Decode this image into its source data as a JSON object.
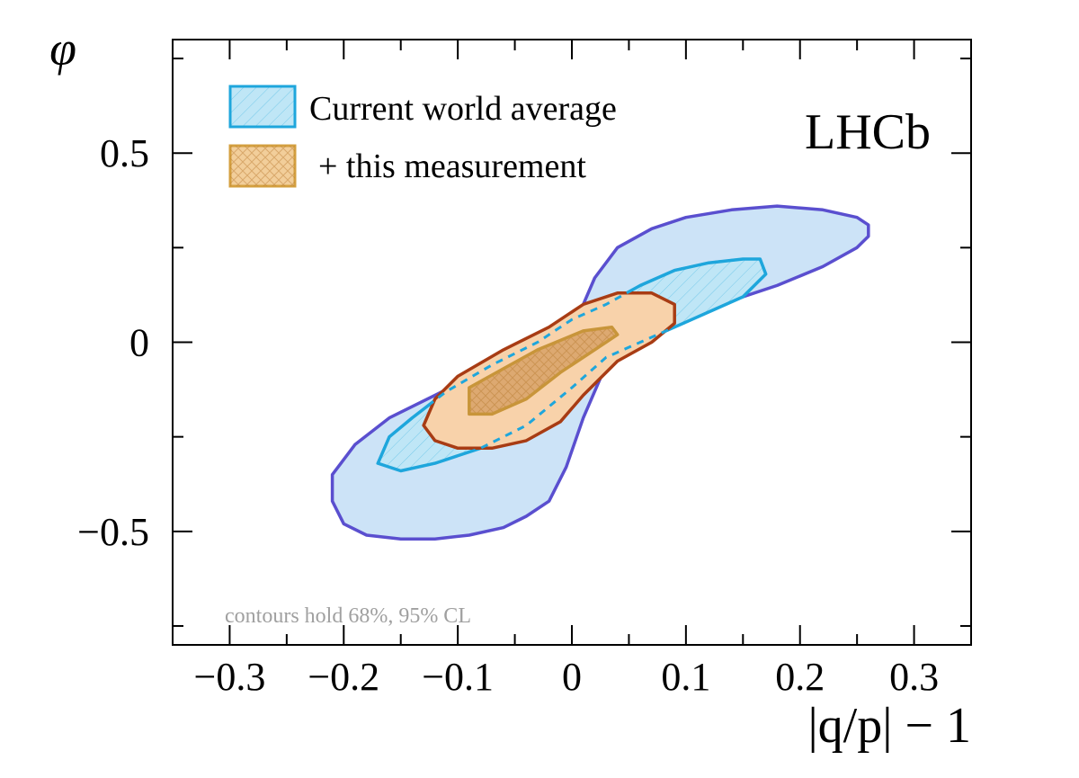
{
  "chart_data": {
    "type": "contour",
    "xlabel": "|q/p| − 1",
    "ylabel": "φ",
    "xlim": [
      -0.35,
      0.35
    ],
    "ylim": [
      -0.8,
      0.8
    ],
    "x_ticks": [
      -0.3,
      -0.2,
      -0.1,
      0,
      0.1,
      0.2,
      0.3
    ],
    "x_tick_labels": [
      "−0.3",
      "−0.2",
      "−0.1",
      "0",
      "0.1",
      "0.2",
      "0.3"
    ],
    "y_ticks": [
      -0.5,
      0,
      0.5
    ],
    "y_tick_labels": [
      "−0.5",
      "0",
      "0.5"
    ],
    "experiment_label": "LHCb",
    "annotation": "contours hold 68%, 95% CL",
    "legend": [
      {
        "label": "Current world average",
        "color": "#1ea6dc",
        "fill": "#bfe6f6"
      },
      {
        "label": "+ this measurement",
        "color": "#d4a040",
        "fill": "#f2ce9a"
      }
    ],
    "series": [
      {
        "name": "Current world average",
        "level": "95% CL",
        "stroke": "#5a4fcf",
        "fill": "#cce3f7",
        "points": [
          [
            -0.21,
            -0.42
          ],
          [
            -0.2,
            -0.48
          ],
          [
            -0.18,
            -0.51
          ],
          [
            -0.15,
            -0.52
          ],
          [
            -0.12,
            -0.52
          ],
          [
            -0.09,
            -0.51
          ],
          [
            -0.06,
            -0.49
          ],
          [
            -0.04,
            -0.46
          ],
          [
            -0.02,
            -0.42
          ],
          [
            -0.005,
            -0.33
          ],
          [
            0.01,
            -0.2
          ],
          [
            0.03,
            -0.06
          ],
          [
            0.06,
            0.01
          ],
          [
            0.1,
            0.06
          ],
          [
            0.14,
            0.11
          ],
          [
            0.18,
            0.15
          ],
          [
            0.22,
            0.2
          ],
          [
            0.25,
            0.25
          ],
          [
            0.26,
            0.28
          ],
          [
            0.26,
            0.31
          ],
          [
            0.25,
            0.33
          ],
          [
            0.22,
            0.35
          ],
          [
            0.18,
            0.36
          ],
          [
            0.14,
            0.35
          ],
          [
            0.1,
            0.33
          ],
          [
            0.07,
            0.3
          ],
          [
            0.04,
            0.25
          ],
          [
            0.02,
            0.17
          ],
          [
            0.01,
            0.1
          ],
          [
            -0.01,
            0.04
          ],
          [
            -0.04,
            -0.02
          ],
          [
            -0.08,
            -0.08
          ],
          [
            -0.12,
            -0.14
          ],
          [
            -0.16,
            -0.2
          ],
          [
            -0.19,
            -0.27
          ],
          [
            -0.21,
            -0.35
          ]
        ]
      },
      {
        "name": "Current world average",
        "level": "68% CL",
        "stroke": "#1ea6dc",
        "fill": "#bfe6f6",
        "points": [
          [
            -0.17,
            -0.32
          ],
          [
            -0.15,
            -0.34
          ],
          [
            -0.12,
            -0.32
          ],
          [
            -0.08,
            -0.28
          ],
          [
            -0.04,
            -0.22
          ],
          [
            0.0,
            -0.12
          ],
          [
            0.03,
            -0.04
          ],
          [
            0.06,
            0.0
          ],
          [
            0.09,
            0.04
          ],
          [
            0.12,
            0.08
          ],
          [
            0.15,
            0.12
          ],
          [
            0.17,
            0.18
          ],
          [
            0.165,
            0.22
          ],
          [
            0.15,
            0.22
          ],
          [
            0.12,
            0.21
          ],
          [
            0.09,
            0.19
          ],
          [
            0.06,
            0.15
          ],
          [
            0.03,
            0.1
          ],
          [
            0.0,
            0.06
          ],
          [
            -0.03,
            0.0
          ],
          [
            -0.07,
            -0.06
          ],
          [
            -0.11,
            -0.13
          ],
          [
            -0.14,
            -0.2
          ],
          [
            -0.16,
            -0.25
          ]
        ]
      },
      {
        "name": "+ this measurement",
        "level": "95% CL",
        "stroke": "#a83c14",
        "fill": "#f8d2aa",
        "points": [
          [
            -0.13,
            -0.22
          ],
          [
            -0.12,
            -0.26
          ],
          [
            -0.1,
            -0.28
          ],
          [
            -0.07,
            -0.28
          ],
          [
            -0.04,
            -0.26
          ],
          [
            -0.01,
            -0.21
          ],
          [
            0.01,
            -0.14
          ],
          [
            0.04,
            -0.05
          ],
          [
            0.07,
            0.0
          ],
          [
            0.09,
            0.05
          ],
          [
            0.09,
            0.1
          ],
          [
            0.07,
            0.13
          ],
          [
            0.04,
            0.13
          ],
          [
            0.01,
            0.1
          ],
          [
            -0.02,
            0.04
          ],
          [
            -0.06,
            -0.02
          ],
          [
            -0.1,
            -0.09
          ],
          [
            -0.12,
            -0.15
          ]
        ]
      },
      {
        "name": "+ this measurement",
        "level": "68% CL",
        "stroke": "#c8953a",
        "fill": "#d9a46a",
        "points": [
          [
            -0.09,
            -0.17
          ],
          [
            -0.09,
            -0.19
          ],
          [
            -0.07,
            -0.19
          ],
          [
            -0.04,
            -0.15
          ],
          [
            -0.01,
            -0.08
          ],
          [
            0.02,
            -0.02
          ],
          [
            0.04,
            0.02
          ],
          [
            0.035,
            0.04
          ],
          [
            0.01,
            0.03
          ],
          [
            -0.03,
            -0.02
          ],
          [
            -0.06,
            -0.07
          ],
          [
            -0.09,
            -0.12
          ]
        ]
      }
    ]
  }
}
